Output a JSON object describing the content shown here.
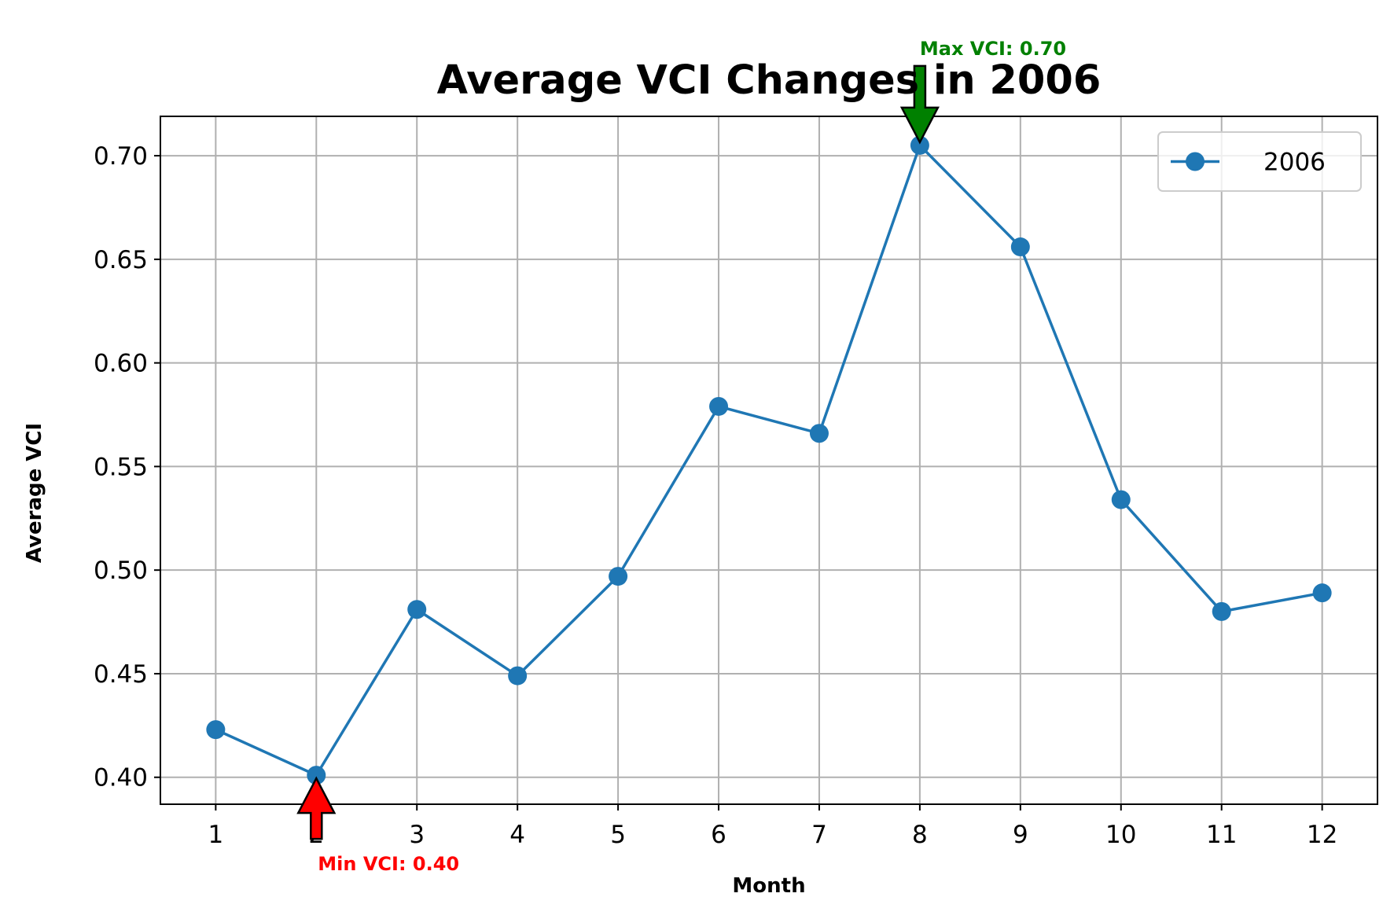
{
  "chart_data": {
    "type": "line",
    "title": "Average VCI Changes in 2006",
    "xlabel": "Month",
    "ylabel": "Average VCI",
    "x": [
      1,
      2,
      3,
      4,
      5,
      6,
      7,
      8,
      9,
      10,
      11,
      12
    ],
    "x_ticks": [
      "1",
      "2",
      "3",
      "4",
      "5",
      "6",
      "7",
      "8",
      "9",
      "10",
      "11",
      "12"
    ],
    "y_ticks": [
      "0.40",
      "0.45",
      "0.50",
      "0.55",
      "0.60",
      "0.65",
      "0.70"
    ],
    "xlim": [
      0.45,
      12.55
    ],
    "ylim": [
      0.387,
      0.719
    ],
    "grid": true,
    "legend_placement": "top-right",
    "series": [
      {
        "name": "2006",
        "color": "#1f77b4",
        "values": [
          0.423,
          0.401,
          0.481,
          0.449,
          0.497,
          0.579,
          0.566,
          0.705,
          0.656,
          0.534,
          0.48,
          0.489
        ]
      }
    ],
    "annotations": [
      {
        "text": "Max VCI: 0.70",
        "x": 8,
        "y": 0.705,
        "color": "#008000",
        "arrow": "down"
      },
      {
        "text": "Min VCI: 0.40",
        "x": 2,
        "y": 0.401,
        "color": "#ff0000",
        "arrow": "up"
      }
    ]
  }
}
